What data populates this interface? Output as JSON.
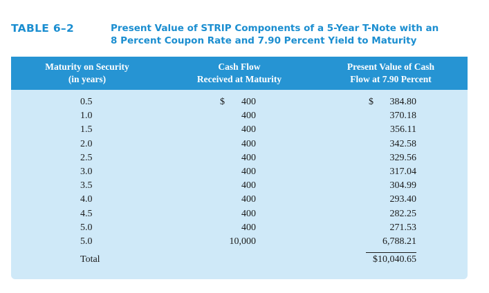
{
  "caption": {
    "label": "TABLE 6–2",
    "title_line1": "Present Value of STRIP Components of a 5-Year T-Note with an",
    "title_line2": "8 Percent Coupon Rate and 7.90 Percent Yield to Maturity"
  },
  "columns": {
    "maturity": [
      "Maturity on Security",
      "(in years)"
    ],
    "cash_flow": [
      "Cash Flow",
      "Received at Maturity"
    ],
    "present_value": [
      "Present Value of Cash",
      "Flow at 7.90 Percent"
    ]
  },
  "rows": [
    {
      "maturity": "0.5",
      "cf_symbol": "$",
      "cash_flow": "400",
      "pv_symbol": "$",
      "present_value": "384.80"
    },
    {
      "maturity": "1.0",
      "cf_symbol": "",
      "cash_flow": "400",
      "pv_symbol": "",
      "present_value": "370.18"
    },
    {
      "maturity": "1.5",
      "cf_symbol": "",
      "cash_flow": "400",
      "pv_symbol": "",
      "present_value": "356.11"
    },
    {
      "maturity": "2.0",
      "cf_symbol": "",
      "cash_flow": "400",
      "pv_symbol": "",
      "present_value": "342.58"
    },
    {
      "maturity": "2.5",
      "cf_symbol": "",
      "cash_flow": "400",
      "pv_symbol": "",
      "present_value": "329.56"
    },
    {
      "maturity": "3.0",
      "cf_symbol": "",
      "cash_flow": "400",
      "pv_symbol": "",
      "present_value": "317.04"
    },
    {
      "maturity": "3.5",
      "cf_symbol": "",
      "cash_flow": "400",
      "pv_symbol": "",
      "present_value": "304.99"
    },
    {
      "maturity": "4.0",
      "cf_symbol": "",
      "cash_flow": "400",
      "pv_symbol": "",
      "present_value": "293.40"
    },
    {
      "maturity": "4.5",
      "cf_symbol": "",
      "cash_flow": "400",
      "pv_symbol": "",
      "present_value": "282.25"
    },
    {
      "maturity": "5.0",
      "cf_symbol": "",
      "cash_flow": "400",
      "pv_symbol": "",
      "present_value": "271.53"
    },
    {
      "maturity": "5.0",
      "cf_symbol": "",
      "cash_flow": "10,000",
      "pv_symbol": "",
      "present_value": "6,788.21"
    }
  ],
  "total": {
    "label": "Total",
    "present_value": "$10,040.65"
  },
  "colors": {
    "accent": "#1b8ed0",
    "header_bg": "#2694d3",
    "panel_bg": "#cfe9f8"
  }
}
